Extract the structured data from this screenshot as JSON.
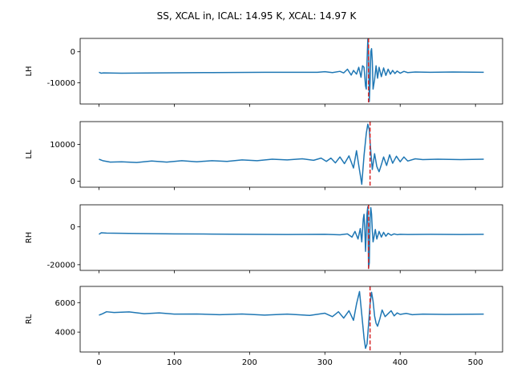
{
  "title": "SS, XCAL in, ICAL: 14.95 K, XCAL: 14.97 K",
  "colors": {
    "series": "#1f77b4",
    "marker": "#d62728",
    "axes": "#000000",
    "background": "#ffffff"
  },
  "chart_data": [
    {
      "type": "line",
      "ylabel": "LH",
      "xlim": [
        -25,
        536
      ],
      "ylim": [
        -16800,
        4300
      ],
      "yticks": [
        0,
        -10000
      ],
      "ytick_labels": [
        "0",
        "-10000"
      ],
      "xticks": [
        0,
        100,
        200,
        300,
        400,
        500
      ],
      "xtick_labels": [],
      "series": [
        {
          "x": [
            0,
            3,
            6,
            30,
            80,
            150,
            220,
            290,
            300,
            310,
            320,
            325,
            330,
            335,
            338,
            342,
            345,
            348,
            350,
            352,
            354,
            355,
            356,
            357,
            358,
            359,
            360,
            361,
            362,
            363,
            364,
            366,
            368,
            370,
            372,
            375,
            378,
            381,
            384,
            387,
            390,
            393,
            396,
            400,
            405,
            410,
            420,
            440,
            470,
            511
          ],
          "y": [
            -6600,
            -6900,
            -6800,
            -6900,
            -6800,
            -6700,
            -6600,
            -6600,
            -6400,
            -6700,
            -6300,
            -6800,
            -5600,
            -7500,
            -6000,
            -7200,
            -5000,
            -8200,
            -4500,
            -5000,
            -11000,
            -12000,
            -3000,
            4000,
            0,
            -16000,
            -10000,
            0,
            1000,
            -3000,
            -12000,
            -9000,
            -4500,
            -8500,
            -5000,
            -8000,
            -5200,
            -7600,
            -5600,
            -7200,
            -6000,
            -7000,
            -6200,
            -6900,
            -6300,
            -6700,
            -6500,
            -6600,
            -6500,
            -6600
          ]
        }
      ],
      "vline_x": 358
    },
    {
      "type": "line",
      "ylabel": "LL",
      "xlim": [
        -25,
        536
      ],
      "ylim": [
        -1600,
        16200
      ],
      "yticks": [
        10000,
        0
      ],
      "ytick_labels": [
        "10000",
        "0"
      ],
      "xticks": [
        0,
        100,
        200,
        300,
        400,
        500
      ],
      "xtick_labels": [],
      "series": [
        {
          "x": [
            0,
            5,
            15,
            30,
            50,
            70,
            90,
            110,
            130,
            150,
            170,
            190,
            210,
            230,
            250,
            270,
            285,
            295,
            302,
            308,
            314,
            320,
            326,
            332,
            338,
            342,
            346,
            349,
            352,
            355,
            357,
            359,
            361,
            363,
            366,
            369,
            372,
            375,
            378,
            382,
            386,
            390,
            395,
            400,
            405,
            410,
            420,
            430,
            450,
            480,
            511
          ],
          "y": [
            6000,
            5600,
            5200,
            5300,
            5100,
            5500,
            5200,
            5600,
            5300,
            5600,
            5400,
            5800,
            5600,
            6000,
            5800,
            6100,
            5700,
            6300,
            5400,
            6300,
            5000,
            6600,
            4800,
            6900,
            3600,
            8300,
            3000,
            -800,
            7000,
            13000,
            15500,
            14000,
            8000,
            3200,
            7500,
            4000,
            2600,
            4500,
            6600,
            4300,
            7200,
            4900,
            6800,
            5300,
            6600,
            5500,
            6100,
            5900,
            6000,
            5900,
            6000
          ]
        }
      ],
      "vline_x": 360
    },
    {
      "type": "line",
      "ylabel": "RH",
      "xlim": [
        -25,
        536
      ],
      "ylim": [
        -23000,
        11500
      ],
      "yticks": [
        0,
        -20000
      ],
      "ytick_labels": [
        "0",
        "-20000"
      ],
      "xticks": [
        0,
        100,
        200,
        300,
        400,
        500
      ],
      "xtick_labels": [],
      "series": [
        {
          "x": [
            0,
            3,
            10,
            50,
            100,
            150,
            200,
            250,
            300,
            320,
            330,
            336,
            340,
            344,
            347,
            349,
            351,
            352,
            353,
            354,
            355,
            356,
            357,
            358,
            359,
            360,
            361,
            362,
            363,
            364,
            365,
            367,
            369,
            372,
            375,
            378,
            381,
            384,
            388,
            392,
            396,
            400,
            410,
            440,
            480,
            511
          ],
          "y": [
            -4000,
            -3200,
            -3400,
            -3600,
            -3800,
            -3900,
            -4000,
            -4100,
            -4000,
            -4300,
            -3800,
            -5500,
            -2500,
            -6500,
            -1000,
            -8000,
            4000,
            6500,
            -1000,
            -13000,
            -3000,
            7000,
            10500,
            -22000,
            -19000,
            4000,
            10000,
            6500,
            -2000,
            -8000,
            -6000,
            -1500,
            -6500,
            -2500,
            -5500,
            -3000,
            -5000,
            -3500,
            -4500,
            -3800,
            -4200,
            -4000,
            -4100,
            -4000,
            -4100,
            -4000
          ]
        }
      ],
      "vline_x": 358
    },
    {
      "type": "line",
      "ylabel": "RL",
      "xlim": [
        -25,
        536
      ],
      "ylim": [
        2650,
        7100
      ],
      "yticks": [
        6000,
        4000
      ],
      "ytick_labels": [
        "6000",
        "4000"
      ],
      "xticks": [
        0,
        100,
        200,
        300,
        400,
        500
      ],
      "xtick_labels": [
        "0",
        "100",
        "200",
        "300",
        "400",
        "500"
      ],
      "series": [
        {
          "x": [
            0,
            5,
            10,
            20,
            40,
            60,
            80,
            100,
            130,
            160,
            190,
            220,
            250,
            280,
            300,
            310,
            318,
            325,
            332,
            338,
            342,
            346,
            349,
            352,
            354,
            356,
            358,
            360,
            362,
            364,
            366,
            368,
            370,
            373,
            376,
            380,
            384,
            388,
            392,
            396,
            400,
            408,
            416,
            430,
            460,
            511
          ],
          "y": [
            5150,
            5250,
            5380,
            5330,
            5370,
            5250,
            5300,
            5220,
            5230,
            5180,
            5230,
            5150,
            5220,
            5130,
            5280,
            5050,
            5380,
            4950,
            5450,
            4800,
            5900,
            6750,
            5200,
            3600,
            2900,
            3200,
            4500,
            5900,
            6700,
            6100,
            5100,
            4600,
            4400,
            4900,
            5500,
            5050,
            5250,
            5450,
            5100,
            5300,
            5200,
            5270,
            5180,
            5220,
            5200,
            5220
          ]
        }
      ],
      "vline_x": 360
    }
  ]
}
